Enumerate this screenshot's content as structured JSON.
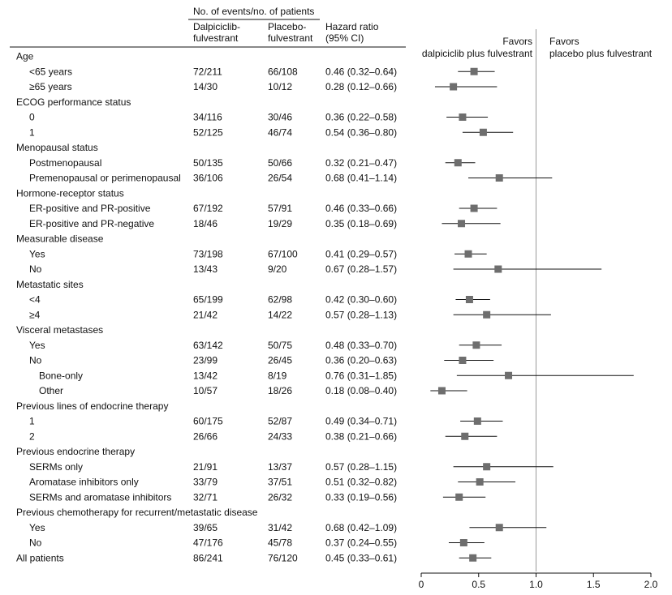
{
  "header": {
    "events_group": "No. of events/no. of patients",
    "col_dalp": [
      "Dalpiciclib-",
      "fulvestrant"
    ],
    "col_plac": [
      "Placebo-",
      "fulvestrant"
    ],
    "col_hr": [
      "Hazard ratio",
      "(95% CI)"
    ],
    "favors_left": [
      "Favors",
      "dalpiciclib plus fulvestrant"
    ],
    "favors_right": [
      "Favors",
      "placebo plus fulvestrant"
    ]
  },
  "chart_data": {
    "type": "forest",
    "xlim": [
      0,
      2.0
    ],
    "x_ticks": [
      "0",
      "0.5",
      "1.0",
      "1.5",
      "2.0"
    ],
    "x_tick_values": [
      0,
      0.5,
      1.0,
      1.5,
      2.0
    ],
    "reference_line": 1.0,
    "marker_color": "#6e6e6e",
    "rows": [
      {
        "type": "group",
        "label": "Age"
      },
      {
        "type": "item",
        "indent": 1,
        "label": "<65 years",
        "dalp": "72/211",
        "plac": "66/108",
        "hr_text": "0.46 (0.32–0.64)",
        "hr": 0.46,
        "lo": 0.32,
        "hi": 0.64
      },
      {
        "type": "item",
        "indent": 1,
        "label": "≥65 years",
        "dalp": "14/30",
        "plac": "10/12",
        "hr_text": "0.28 (0.12–0.66)",
        "hr": 0.28,
        "lo": 0.12,
        "hi": 0.66
      },
      {
        "type": "group",
        "label": "ECOG performance status"
      },
      {
        "type": "item",
        "indent": 1,
        "label": "0",
        "dalp": "34/116",
        "plac": "30/46",
        "hr_text": "0.36 (0.22–0.58)",
        "hr": 0.36,
        "lo": 0.22,
        "hi": 0.58
      },
      {
        "type": "item",
        "indent": 1,
        "label": "1",
        "dalp": "52/125",
        "plac": "46/74",
        "hr_text": "0.54 (0.36–0.80)",
        "hr": 0.54,
        "lo": 0.36,
        "hi": 0.8
      },
      {
        "type": "group",
        "label": "Menopausal status"
      },
      {
        "type": "item",
        "indent": 1,
        "label": "Postmenopausal",
        "dalp": "50/135",
        "plac": "50/66",
        "hr_text": "0.32 (0.21–0.47)",
        "hr": 0.32,
        "lo": 0.21,
        "hi": 0.47
      },
      {
        "type": "item",
        "indent": 1,
        "label": "Premenopausal or perimenopausal",
        "dalp": "36/106",
        "plac": "26/54",
        "hr_text": "0.68 (0.41–1.14)",
        "hr": 0.68,
        "lo": 0.41,
        "hi": 1.14
      },
      {
        "type": "group",
        "label": "Hormone-receptor status"
      },
      {
        "type": "item",
        "indent": 1,
        "label": "ER-positive and PR-positive",
        "dalp": "67/192",
        "plac": "57/91",
        "hr_text": "0.46 (0.33–0.66)",
        "hr": 0.46,
        "lo": 0.33,
        "hi": 0.66
      },
      {
        "type": "item",
        "indent": 1,
        "label": "ER-positive and PR-negative",
        "dalp": "18/46",
        "plac": "19/29",
        "hr_text": "0.35 (0.18–0.69)",
        "hr": 0.35,
        "lo": 0.18,
        "hi": 0.69
      },
      {
        "type": "group",
        "label": "Measurable disease"
      },
      {
        "type": "item",
        "indent": 1,
        "label": "Yes",
        "dalp": "73/198",
        "plac": "67/100",
        "hr_text": "0.41 (0.29–0.57)",
        "hr": 0.41,
        "lo": 0.29,
        "hi": 0.57
      },
      {
        "type": "item",
        "indent": 1,
        "label": "No",
        "dalp": "13/43",
        "plac": "9/20",
        "hr_text": "0.67 (0.28–1.57)",
        "hr": 0.67,
        "lo": 0.28,
        "hi": 1.57
      },
      {
        "type": "group",
        "label": "Metastatic sites"
      },
      {
        "type": "item",
        "indent": 1,
        "label": "<4",
        "dalp": "65/199",
        "plac": "62/98",
        "hr_text": "0.42 (0.30–0.60)",
        "hr": 0.42,
        "lo": 0.3,
        "hi": 0.6
      },
      {
        "type": "item",
        "indent": 1,
        "label": "≥4",
        "dalp": "21/42",
        "plac": "14/22",
        "hr_text": "0.57 (0.28–1.13)",
        "hr": 0.57,
        "lo": 0.28,
        "hi": 1.13
      },
      {
        "type": "group",
        "label": "Visceral metastases"
      },
      {
        "type": "item",
        "indent": 1,
        "label": "Yes",
        "dalp": "63/142",
        "plac": "50/75",
        "hr_text": "0.48 (0.33–0.70)",
        "hr": 0.48,
        "lo": 0.33,
        "hi": 0.7
      },
      {
        "type": "item",
        "indent": 1,
        "label": "No",
        "dalp": "23/99",
        "plac": "26/45",
        "hr_text": "0.36 (0.20–0.63)",
        "hr": 0.36,
        "lo": 0.2,
        "hi": 0.63
      },
      {
        "type": "item",
        "indent": 2,
        "label": "Bone-only",
        "dalp": "13/42",
        "plac": "8/19",
        "hr_text": "0.76 (0.31–1.85)",
        "hr": 0.76,
        "lo": 0.31,
        "hi": 1.85
      },
      {
        "type": "item",
        "indent": 2,
        "label": "Other",
        "dalp": "10/57",
        "plac": "18/26",
        "hr_text": "0.18 (0.08–0.40)",
        "hr": 0.18,
        "lo": 0.08,
        "hi": 0.4
      },
      {
        "type": "group",
        "label": "Previous lines of endocrine therapy"
      },
      {
        "type": "item",
        "indent": 1,
        "label": "1",
        "dalp": "60/175",
        "plac": "52/87",
        "hr_text": "0.49 (0.34–0.71)",
        "hr": 0.49,
        "lo": 0.34,
        "hi": 0.71
      },
      {
        "type": "item",
        "indent": 1,
        "label": "2",
        "dalp": "26/66",
        "plac": "24/33",
        "hr_text": "0.38 (0.21–0.66)",
        "hr": 0.38,
        "lo": 0.21,
        "hi": 0.66
      },
      {
        "type": "group",
        "label": "Previous endocrine therapy"
      },
      {
        "type": "item",
        "indent": 1,
        "label": "SERMs only",
        "dalp": "21/91",
        "plac": "13/37",
        "hr_text": "0.57 (0.28–1.15)",
        "hr": 0.57,
        "lo": 0.28,
        "hi": 1.15
      },
      {
        "type": "item",
        "indent": 1,
        "label": "Aromatase inhibitors only",
        "dalp": "33/79",
        "plac": "37/51",
        "hr_text": "0.51 (0.32–0.82)",
        "hr": 0.51,
        "lo": 0.32,
        "hi": 0.82
      },
      {
        "type": "item",
        "indent": 1,
        "label": "SERMs and aromatase inhibitors",
        "dalp": "32/71",
        "plac": "26/32",
        "hr_text": "0.33 (0.19–0.56)",
        "hr": 0.33,
        "lo": 0.19,
        "hi": 0.56
      },
      {
        "type": "group",
        "label": "Previous chemotherapy for recurrent/metastatic disease"
      },
      {
        "type": "item",
        "indent": 1,
        "label": "Yes",
        "dalp": "39/65",
        "plac": "31/42",
        "hr_text": "0.68 (0.42–1.09)",
        "hr": 0.68,
        "lo": 0.42,
        "hi": 1.09
      },
      {
        "type": "item",
        "indent": 1,
        "label": "No",
        "dalp": "47/176",
        "plac": "45/78",
        "hr_text": "0.37 (0.24–0.55)",
        "hr": 0.37,
        "lo": 0.24,
        "hi": 0.55
      },
      {
        "type": "item",
        "indent": 0,
        "label": "All patients",
        "dalp": "86/241",
        "plac": "76/120",
        "hr_text": "0.45 (0.33–0.61)",
        "hr": 0.45,
        "lo": 0.33,
        "hi": 0.61
      }
    ]
  }
}
